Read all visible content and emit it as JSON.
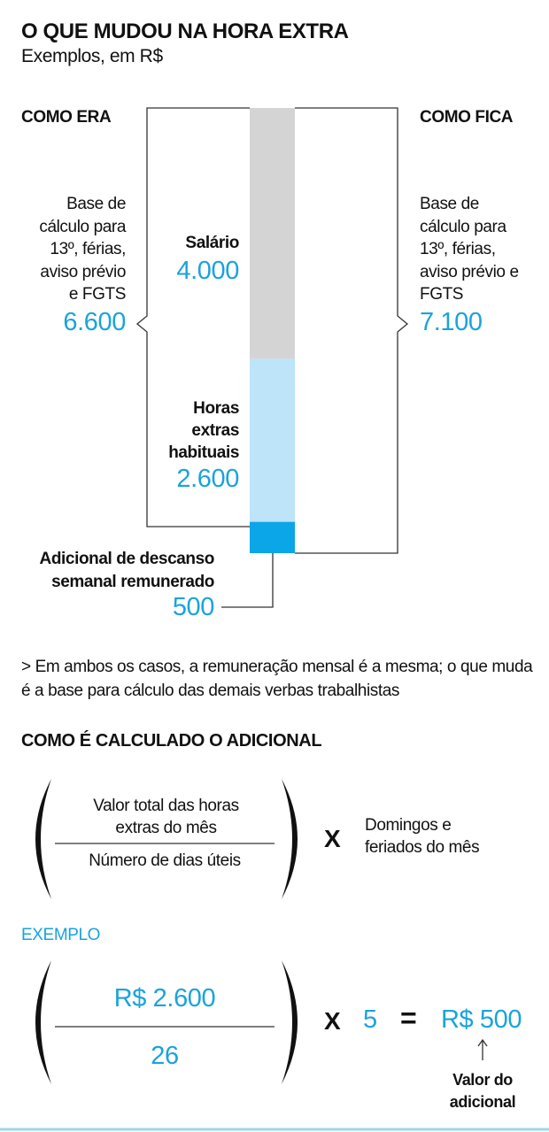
{
  "chart_data": {
    "type": "stacked-bar",
    "title": "O QUE MUDOU NA HORA EXTRA",
    "subtitle": "Exemplos, em R$",
    "categories": [
      null
    ],
    "series": [
      {
        "name": "Adicional de descanso semanal remunerado",
        "color": "#0aa6e8",
        "values": [
          500
        ],
        "value_labels": [
          "500"
        ]
      },
      {
        "name": "Horas extras habituais",
        "color": "#bde4f8",
        "values": [
          2600
        ],
        "value_labels": [
          "2.600"
        ]
      },
      {
        "name": "Salário",
        "color": "#d4d4d4",
        "values": [
          4000
        ],
        "value_labels": [
          "4.000"
        ]
      }
    ],
    "ylim": [
      0,
      7100
    ]
  },
  "comparison": [
    {
      "heading": "COMO ERA",
      "description": "Base de cálculo para 13º, férias, aviso prévio e FGTS",
      "total": "6.600"
    },
    {
      "heading": "COMO FICA",
      "description": "Base de cálculo para 13º, férias, aviso prévio e FGTS",
      "total": "7.100"
    }
  ],
  "note": "> Em ambos os casos, a remuneração mensal é a mesma; o que muda é a base para cálculo das demais verbas trabalhistas",
  "formula": {
    "heading": "COMO É CALCULADO O ADICIONAL",
    "numerator": "Valor total das horas extras do mês",
    "denominator": "Número de dias úteis",
    "operator": "X",
    "multiplier": "Domingos e feriados do mês"
  },
  "example": {
    "label": "EXEMPLO",
    "numerator": "R$ 2.600",
    "denominator": "26",
    "operator": "X",
    "multiplier": "5",
    "equals": "=",
    "result": "R$ 500",
    "result_note": "Valor do adicional"
  }
}
